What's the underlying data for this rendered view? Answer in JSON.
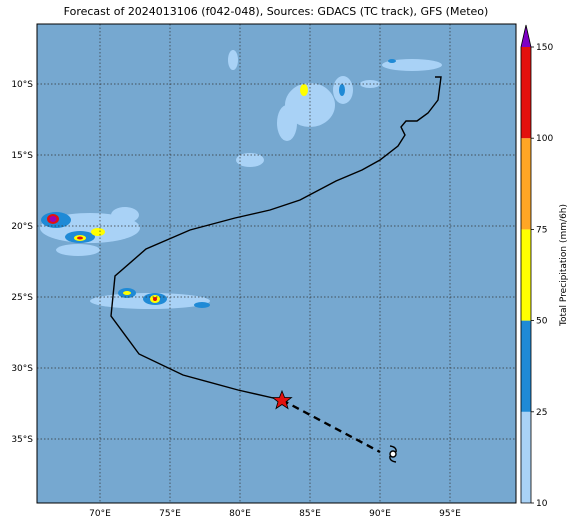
{
  "title": "Forecast of 2024013106 (f042-048), Sources: GDACS (TC track), GFS (Meteo)",
  "map": {
    "lon_ticks": [
      {
        "value": 70,
        "label": "70°E"
      },
      {
        "value": 75,
        "label": "75°E"
      },
      {
        "value": 80,
        "label": "80°E"
      },
      {
        "value": 85,
        "label": "85°E"
      },
      {
        "value": 90,
        "label": "90°E"
      },
      {
        "value": 95,
        "label": "95°E"
      }
    ],
    "lat_ticks": [
      {
        "value": -10,
        "label": "10°S"
      },
      {
        "value": -15,
        "label": "15°S"
      },
      {
        "value": -20,
        "label": "20°S"
      },
      {
        "value": -25,
        "label": "25°S"
      },
      {
        "value": -30,
        "label": "30°S"
      },
      {
        "value": -35,
        "label": "35°S"
      }
    ]
  },
  "colorbar": {
    "label": "Total Precipitation (mm/6h)",
    "ticks": [
      10,
      25,
      50,
      75,
      100,
      150
    ],
    "colors": [
      "#a9d2f6",
      "#1f8ad6",
      "#ffff00",
      "#ffa625",
      "#e3110e"
    ],
    "extend_color": "#7e00c5"
  }
}
